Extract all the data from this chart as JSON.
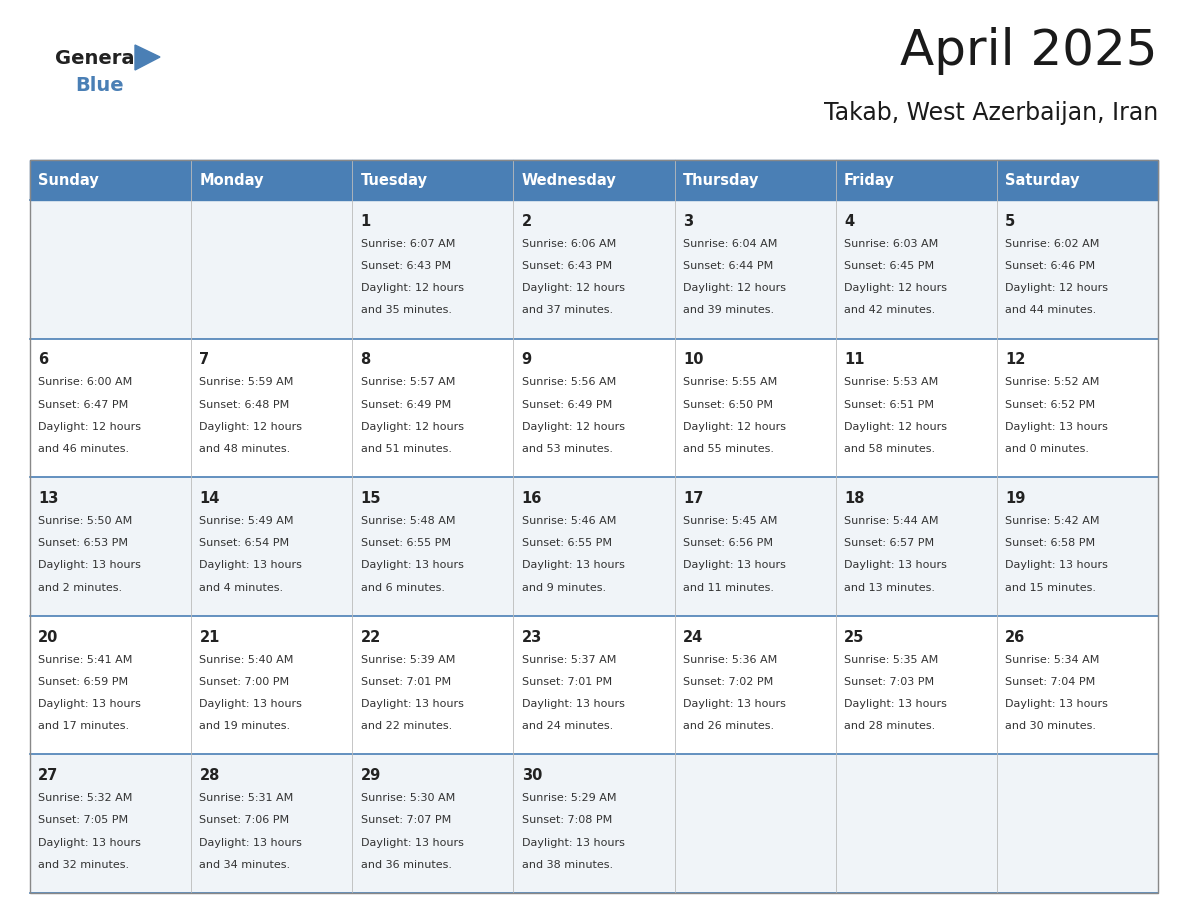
{
  "title": "April 2025",
  "subtitle": "Takab, West Azerbaijan, Iran",
  "header_bg": "#4a7fb5",
  "header_text_color": "#ffffff",
  "cell_bg_odd": "#f0f4f8",
  "cell_bg_even": "#ffffff",
  "border_color": "#4a7fb5",
  "grid_color": "#bbbbbb",
  "day_names": [
    "Sunday",
    "Monday",
    "Tuesday",
    "Wednesday",
    "Thursday",
    "Friday",
    "Saturday"
  ],
  "weeks": [
    [
      {
        "day": "",
        "sunrise": "",
        "sunset": "",
        "daylight1": "",
        "daylight2": ""
      },
      {
        "day": "",
        "sunrise": "",
        "sunset": "",
        "daylight1": "",
        "daylight2": ""
      },
      {
        "day": "1",
        "sunrise": "Sunrise: 6:07 AM",
        "sunset": "Sunset: 6:43 PM",
        "daylight1": "Daylight: 12 hours",
        "daylight2": "and 35 minutes."
      },
      {
        "day": "2",
        "sunrise": "Sunrise: 6:06 AM",
        "sunset": "Sunset: 6:43 PM",
        "daylight1": "Daylight: 12 hours",
        "daylight2": "and 37 minutes."
      },
      {
        "day": "3",
        "sunrise": "Sunrise: 6:04 AM",
        "sunset": "Sunset: 6:44 PM",
        "daylight1": "Daylight: 12 hours",
        "daylight2": "and 39 minutes."
      },
      {
        "day": "4",
        "sunrise": "Sunrise: 6:03 AM",
        "sunset": "Sunset: 6:45 PM",
        "daylight1": "Daylight: 12 hours",
        "daylight2": "and 42 minutes."
      },
      {
        "day": "5",
        "sunrise": "Sunrise: 6:02 AM",
        "sunset": "Sunset: 6:46 PM",
        "daylight1": "Daylight: 12 hours",
        "daylight2": "and 44 minutes."
      }
    ],
    [
      {
        "day": "6",
        "sunrise": "Sunrise: 6:00 AM",
        "sunset": "Sunset: 6:47 PM",
        "daylight1": "Daylight: 12 hours",
        "daylight2": "and 46 minutes."
      },
      {
        "day": "7",
        "sunrise": "Sunrise: 5:59 AM",
        "sunset": "Sunset: 6:48 PM",
        "daylight1": "Daylight: 12 hours",
        "daylight2": "and 48 minutes."
      },
      {
        "day": "8",
        "sunrise": "Sunrise: 5:57 AM",
        "sunset": "Sunset: 6:49 PM",
        "daylight1": "Daylight: 12 hours",
        "daylight2": "and 51 minutes."
      },
      {
        "day": "9",
        "sunrise": "Sunrise: 5:56 AM",
        "sunset": "Sunset: 6:49 PM",
        "daylight1": "Daylight: 12 hours",
        "daylight2": "and 53 minutes."
      },
      {
        "day": "10",
        "sunrise": "Sunrise: 5:55 AM",
        "sunset": "Sunset: 6:50 PM",
        "daylight1": "Daylight: 12 hours",
        "daylight2": "and 55 minutes."
      },
      {
        "day": "11",
        "sunrise": "Sunrise: 5:53 AM",
        "sunset": "Sunset: 6:51 PM",
        "daylight1": "Daylight: 12 hours",
        "daylight2": "and 58 minutes."
      },
      {
        "day": "12",
        "sunrise": "Sunrise: 5:52 AM",
        "sunset": "Sunset: 6:52 PM",
        "daylight1": "Daylight: 13 hours",
        "daylight2": "and 0 minutes."
      }
    ],
    [
      {
        "day": "13",
        "sunrise": "Sunrise: 5:50 AM",
        "sunset": "Sunset: 6:53 PM",
        "daylight1": "Daylight: 13 hours",
        "daylight2": "and 2 minutes."
      },
      {
        "day": "14",
        "sunrise": "Sunrise: 5:49 AM",
        "sunset": "Sunset: 6:54 PM",
        "daylight1": "Daylight: 13 hours",
        "daylight2": "and 4 minutes."
      },
      {
        "day": "15",
        "sunrise": "Sunrise: 5:48 AM",
        "sunset": "Sunset: 6:55 PM",
        "daylight1": "Daylight: 13 hours",
        "daylight2": "and 6 minutes."
      },
      {
        "day": "16",
        "sunrise": "Sunrise: 5:46 AM",
        "sunset": "Sunset: 6:55 PM",
        "daylight1": "Daylight: 13 hours",
        "daylight2": "and 9 minutes."
      },
      {
        "day": "17",
        "sunrise": "Sunrise: 5:45 AM",
        "sunset": "Sunset: 6:56 PM",
        "daylight1": "Daylight: 13 hours",
        "daylight2": "and 11 minutes."
      },
      {
        "day": "18",
        "sunrise": "Sunrise: 5:44 AM",
        "sunset": "Sunset: 6:57 PM",
        "daylight1": "Daylight: 13 hours",
        "daylight2": "and 13 minutes."
      },
      {
        "day": "19",
        "sunrise": "Sunrise: 5:42 AM",
        "sunset": "Sunset: 6:58 PM",
        "daylight1": "Daylight: 13 hours",
        "daylight2": "and 15 minutes."
      }
    ],
    [
      {
        "day": "20",
        "sunrise": "Sunrise: 5:41 AM",
        "sunset": "Sunset: 6:59 PM",
        "daylight1": "Daylight: 13 hours",
        "daylight2": "and 17 minutes."
      },
      {
        "day": "21",
        "sunrise": "Sunrise: 5:40 AM",
        "sunset": "Sunset: 7:00 PM",
        "daylight1": "Daylight: 13 hours",
        "daylight2": "and 19 minutes."
      },
      {
        "day": "22",
        "sunrise": "Sunrise: 5:39 AM",
        "sunset": "Sunset: 7:01 PM",
        "daylight1": "Daylight: 13 hours",
        "daylight2": "and 22 minutes."
      },
      {
        "day": "23",
        "sunrise": "Sunrise: 5:37 AM",
        "sunset": "Sunset: 7:01 PM",
        "daylight1": "Daylight: 13 hours",
        "daylight2": "and 24 minutes."
      },
      {
        "day": "24",
        "sunrise": "Sunrise: 5:36 AM",
        "sunset": "Sunset: 7:02 PM",
        "daylight1": "Daylight: 13 hours",
        "daylight2": "and 26 minutes."
      },
      {
        "day": "25",
        "sunrise": "Sunrise: 5:35 AM",
        "sunset": "Sunset: 7:03 PM",
        "daylight1": "Daylight: 13 hours",
        "daylight2": "and 28 minutes."
      },
      {
        "day": "26",
        "sunrise": "Sunrise: 5:34 AM",
        "sunset": "Sunset: 7:04 PM",
        "daylight1": "Daylight: 13 hours",
        "daylight2": "and 30 minutes."
      }
    ],
    [
      {
        "day": "27",
        "sunrise": "Sunrise: 5:32 AM",
        "sunset": "Sunset: 7:05 PM",
        "daylight1": "Daylight: 13 hours",
        "daylight2": "and 32 minutes."
      },
      {
        "day": "28",
        "sunrise": "Sunrise: 5:31 AM",
        "sunset": "Sunset: 7:06 PM",
        "daylight1": "Daylight: 13 hours",
        "daylight2": "and 34 minutes."
      },
      {
        "day": "29",
        "sunrise": "Sunrise: 5:30 AM",
        "sunset": "Sunset: 7:07 PM",
        "daylight1": "Daylight: 13 hours",
        "daylight2": "and 36 minutes."
      },
      {
        "day": "30",
        "sunrise": "Sunrise: 5:29 AM",
        "sunset": "Sunset: 7:08 PM",
        "daylight1": "Daylight: 13 hours",
        "daylight2": "and 38 minutes."
      },
      {
        "day": "",
        "sunrise": "",
        "sunset": "",
        "daylight1": "",
        "daylight2": ""
      },
      {
        "day": "",
        "sunrise": "",
        "sunset": "",
        "daylight1": "",
        "daylight2": ""
      },
      {
        "day": "",
        "sunrise": "",
        "sunset": "",
        "daylight1": "",
        "daylight2": ""
      }
    ]
  ]
}
